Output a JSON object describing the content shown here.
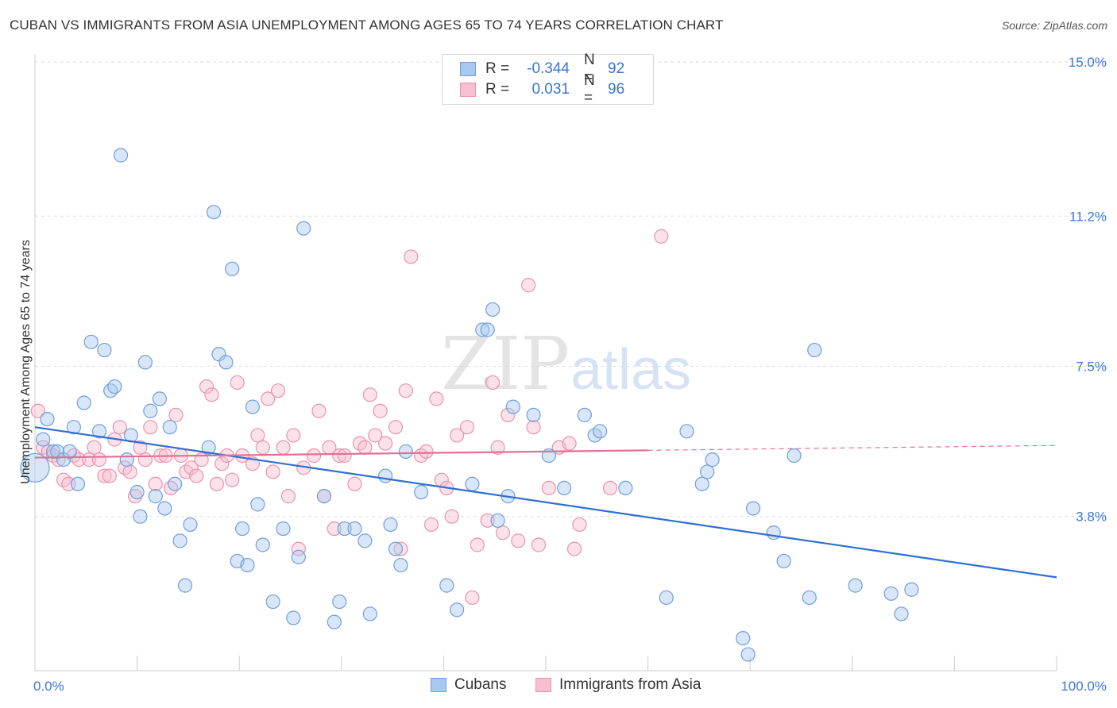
{
  "title": "CUBAN VS IMMIGRANTS FROM ASIA UNEMPLOYMENT AMONG AGES 65 TO 74 YEARS CORRELATION CHART",
  "source": "Source: ZipAtlas.com",
  "watermark": {
    "zip": "ZIP",
    "atlas": "atlas"
  },
  "legend": {
    "rows": [
      {
        "r_label": "R =",
        "r_value": "-0.344",
        "n_label": "N =",
        "n_value": "92"
      },
      {
        "r_label": "R =",
        "r_value": "0.031",
        "n_label": "N =",
        "n_value": "96"
      }
    ]
  },
  "bottom_legend": {
    "series1": "Cubans",
    "series2": "Immigrants from Asia"
  },
  "colors": {
    "cubans_fill": "#a9c8f0",
    "cubans_stroke": "#6f9fdc",
    "cubans_line": "#2f6fd0",
    "asia_fill": "#f7bfd0",
    "asia_stroke": "#e993ad",
    "asia_line": "#e0709a",
    "axis_label": "#3a76d8",
    "grid": "#dddddd"
  },
  "chart_data": {
    "type": "scatter",
    "title": "CUBAN VS IMMIGRANTS FROM ASIA UNEMPLOYMENT AMONG AGES 65 TO 74 YEARS CORRELATION CHART",
    "xlabel": "",
    "ylabel": "Unemployment Among Ages 65 to 74 years",
    "xlim": [
      0,
      100
    ],
    "ylim": [
      0,
      15.0
    ],
    "x_tick_labels": [
      "0.0%",
      "100.0%"
    ],
    "y_ticks": [
      3.8,
      7.5,
      11.2,
      15.0
    ],
    "y_tick_labels": [
      "3.8%",
      "7.5%",
      "11.2%",
      "15.0%"
    ],
    "grid": true,
    "legend_position": "top-center",
    "series": [
      {
        "name": "Cubans",
        "r": -0.344,
        "n": 92,
        "trend": {
          "x": [
            0,
            100
          ],
          "y": [
            6.0,
            2.3
          ],
          "dashed_from": null
        },
        "points": [
          [
            0,
            5.0
          ],
          [
            0.8,
            5.7
          ],
          [
            1.2,
            6.2
          ],
          [
            1.8,
            5.4
          ],
          [
            2.2,
            5.4
          ],
          [
            2.8,
            5.2
          ],
          [
            3.4,
            5.4
          ],
          [
            3.8,
            6.0
          ],
          [
            4.2,
            4.6
          ],
          [
            4.8,
            6.6
          ],
          [
            5.5,
            8.1
          ],
          [
            6.3,
            5.9
          ],
          [
            6.8,
            7.9
          ],
          [
            7.4,
            6.9
          ],
          [
            7.8,
            7.0
          ],
          [
            8.4,
            12.7
          ],
          [
            9.0,
            5.2
          ],
          [
            9.4,
            5.8
          ],
          [
            10.0,
            4.4
          ],
          [
            10.3,
            3.8
          ],
          [
            10.8,
            7.6
          ],
          [
            11.3,
            6.4
          ],
          [
            11.8,
            4.3
          ],
          [
            12.2,
            6.7
          ],
          [
            12.7,
            4.0
          ],
          [
            13.2,
            6.0
          ],
          [
            13.7,
            4.6
          ],
          [
            14.2,
            3.2
          ],
          [
            14.7,
            2.1
          ],
          [
            15.2,
            3.6
          ],
          [
            17.0,
            5.5
          ],
          [
            17.5,
            11.3
          ],
          [
            18.0,
            7.8
          ],
          [
            18.7,
            7.6
          ],
          [
            19.3,
            9.9
          ],
          [
            19.8,
            2.7
          ],
          [
            20.3,
            3.5
          ],
          [
            20.8,
            2.6
          ],
          [
            21.3,
            6.5
          ],
          [
            21.8,
            4.1
          ],
          [
            22.3,
            3.1
          ],
          [
            23.3,
            1.7
          ],
          [
            24.3,
            3.5
          ],
          [
            25.3,
            1.3
          ],
          [
            25.8,
            2.8
          ],
          [
            26.3,
            10.9
          ],
          [
            28.3,
            4.3
          ],
          [
            29.3,
            1.2
          ],
          [
            29.8,
            1.7
          ],
          [
            30.3,
            3.5
          ],
          [
            31.3,
            3.5
          ],
          [
            32.3,
            3.2
          ],
          [
            32.8,
            1.4
          ],
          [
            34.3,
            4.8
          ],
          [
            34.8,
            3.6
          ],
          [
            35.3,
            3.0
          ],
          [
            35.8,
            2.6
          ],
          [
            36.3,
            5.4
          ],
          [
            37.8,
            4.4
          ],
          [
            40.3,
            2.1
          ],
          [
            41.3,
            1.5
          ],
          [
            42.8,
            4.6
          ],
          [
            43.8,
            8.4
          ],
          [
            44.3,
            8.4
          ],
          [
            44.8,
            8.9
          ],
          [
            45.3,
            3.7
          ],
          [
            46.3,
            4.3
          ],
          [
            46.8,
            6.5
          ],
          [
            48.8,
            6.3
          ],
          [
            51.8,
            4.5
          ],
          [
            53.8,
            6.3
          ],
          [
            54.8,
            5.8
          ],
          [
            55.3,
            5.9
          ],
          [
            57.8,
            4.5
          ],
          [
            61.8,
            1.8
          ],
          [
            63.8,
            5.9
          ],
          [
            65.3,
            4.6
          ],
          [
            65.8,
            4.9
          ],
          [
            66.3,
            5.2
          ],
          [
            69.3,
            0.8
          ],
          [
            69.8,
            0.4
          ],
          [
            70.3,
            4.0
          ],
          [
            72.3,
            3.4
          ],
          [
            73.3,
            2.7
          ],
          [
            74.3,
            5.3
          ],
          [
            75.8,
            1.8
          ],
          [
            76.3,
            7.9
          ],
          [
            80.3,
            2.1
          ],
          [
            83.8,
            1.9
          ],
          [
            84.8,
            1.4
          ],
          [
            85.8,
            2.0
          ],
          [
            50.3,
            5.3
          ]
        ]
      },
      {
        "name": "Immigrants from Asia",
        "r": 0.031,
        "n": 96,
        "trend": {
          "x": [
            0,
            100
          ],
          "y": [
            5.25,
            5.55
          ],
          "dashed_from": 60
        },
        "points": [
          [
            0.3,
            6.4
          ],
          [
            0.8,
            5.5
          ],
          [
            1.3,
            5.4
          ],
          [
            1.8,
            5.3
          ],
          [
            2.3,
            5.2
          ],
          [
            2.8,
            4.7
          ],
          [
            3.3,
            4.6
          ],
          [
            3.8,
            5.3
          ],
          [
            4.3,
            5.2
          ],
          [
            5.3,
            5.2
          ],
          [
            5.8,
            5.5
          ],
          [
            6.3,
            5.2
          ],
          [
            6.8,
            4.8
          ],
          [
            7.3,
            4.8
          ],
          [
            7.8,
            5.7
          ],
          [
            8.3,
            6.0
          ],
          [
            8.8,
            5.0
          ],
          [
            9.3,
            4.9
          ],
          [
            9.8,
            4.3
          ],
          [
            10.3,
            5.5
          ],
          [
            10.8,
            5.2
          ],
          [
            11.3,
            6.0
          ],
          [
            11.8,
            4.6
          ],
          [
            12.3,
            5.3
          ],
          [
            12.8,
            5.3
          ],
          [
            13.3,
            4.5
          ],
          [
            13.8,
            6.3
          ],
          [
            14.3,
            5.3
          ],
          [
            14.8,
            4.9
          ],
          [
            15.3,
            5.0
          ],
          [
            15.8,
            4.8
          ],
          [
            16.3,
            5.2
          ],
          [
            16.8,
            7.0
          ],
          [
            17.3,
            6.8
          ],
          [
            17.8,
            4.6
          ],
          [
            18.3,
            5.1
          ],
          [
            18.8,
            5.3
          ],
          [
            19.3,
            4.7
          ],
          [
            19.8,
            7.1
          ],
          [
            20.3,
            5.3
          ],
          [
            21.3,
            5.1
          ],
          [
            21.8,
            5.8
          ],
          [
            22.3,
            5.5
          ],
          [
            22.8,
            6.7
          ],
          [
            23.3,
            4.9
          ],
          [
            23.8,
            6.9
          ],
          [
            24.3,
            5.5
          ],
          [
            24.8,
            4.3
          ],
          [
            25.3,
            5.8
          ],
          [
            25.8,
            3.0
          ],
          [
            26.3,
            5.0
          ],
          [
            27.3,
            5.3
          ],
          [
            27.8,
            6.4
          ],
          [
            28.3,
            4.3
          ],
          [
            28.8,
            5.5
          ],
          [
            29.3,
            3.5
          ],
          [
            29.8,
            5.3
          ],
          [
            30.3,
            5.3
          ],
          [
            31.3,
            4.6
          ],
          [
            31.8,
            5.6
          ],
          [
            32.3,
            5.5
          ],
          [
            32.8,
            6.8
          ],
          [
            33.3,
            5.8
          ],
          [
            33.8,
            6.4
          ],
          [
            34.3,
            5.6
          ],
          [
            35.3,
            6.0
          ],
          [
            35.8,
            3.0
          ],
          [
            36.3,
            6.9
          ],
          [
            36.8,
            10.2
          ],
          [
            37.8,
            5.3
          ],
          [
            38.3,
            5.4
          ],
          [
            38.8,
            3.6
          ],
          [
            39.3,
            6.7
          ],
          [
            39.8,
            4.7
          ],
          [
            40.3,
            4.5
          ],
          [
            40.8,
            3.8
          ],
          [
            41.3,
            5.8
          ],
          [
            42.3,
            6.0
          ],
          [
            42.8,
            1.8
          ],
          [
            43.3,
            3.1
          ],
          [
            44.3,
            3.7
          ],
          [
            44.8,
            7.1
          ],
          [
            45.3,
            5.5
          ],
          [
            45.8,
            3.4
          ],
          [
            46.3,
            6.3
          ],
          [
            47.3,
            3.2
          ],
          [
            48.3,
            9.5
          ],
          [
            48.8,
            6.0
          ],
          [
            49.3,
            3.1
          ],
          [
            50.3,
            4.5
          ],
          [
            51.3,
            5.5
          ],
          [
            52.3,
            5.6
          ],
          [
            52.8,
            3.0
          ],
          [
            53.3,
            3.6
          ],
          [
            56.3,
            4.5
          ],
          [
            61.3,
            10.7
          ]
        ]
      }
    ]
  }
}
